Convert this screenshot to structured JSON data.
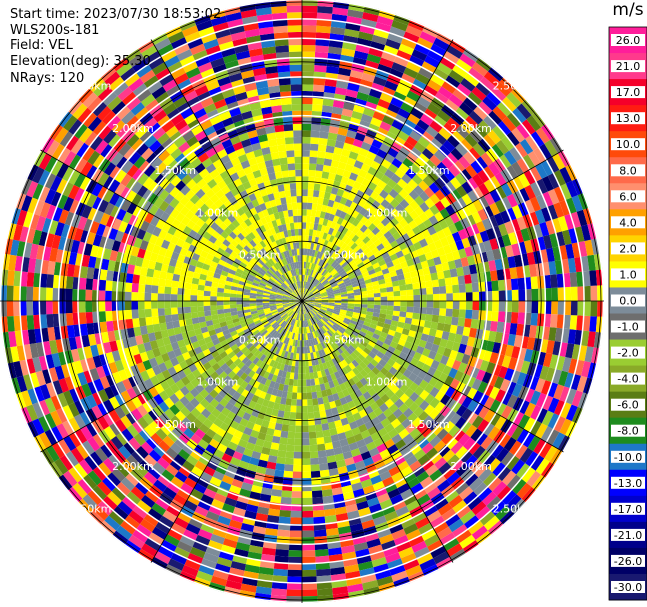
{
  "header": {
    "start_time": "Start time: 2023/07/30 18:53:02",
    "station": "WLS200s-181",
    "field": "Field: VEL",
    "elevation": "Elevation(deg): 35.30",
    "nrays": "NRays: 120"
  },
  "chart_data": {
    "type": "polar-ppi",
    "field": "VEL",
    "n_rays": 120,
    "unit": "m/s",
    "range_rings_km": [
      0.5,
      1.0,
      1.5,
      2.0,
      2.5
    ],
    "ring_labels": [
      "0.50km",
      "1.00km",
      "1.50km",
      "2.00km",
      "2.50km"
    ],
    "colorbar": {
      "ticks": [
        "26.0",
        "21.0",
        "17.0",
        "13.0",
        "10.0",
        "8.0",
        "6.0",
        "4.0",
        "2.0",
        "1.0",
        "0.0",
        "-1.0",
        "-2.0",
        "-4.0",
        "-6.0",
        "-8.0",
        "-10.0",
        "-13.0",
        "-17.0",
        "-21.0",
        "-26.0",
        "-30.0"
      ],
      "colors": [
        "#ff1e9a",
        "#ff3a8c",
        "#f5002a",
        "#ff1c12",
        "#ff4a0a",
        "#ff6a4a",
        "#ff8f6e",
        "#ffa000",
        "#ffd400",
        "#ffff00",
        "#7d8c99",
        "#6e6e6e",
        "#9acd32",
        "#8aaa28",
        "#5a7d14",
        "#1e8c1e",
        "#1e78c8",
        "#0000ff",
        "#0000cd",
        "#00008b",
        "#000066",
        "#191970"
      ]
    }
  }
}
